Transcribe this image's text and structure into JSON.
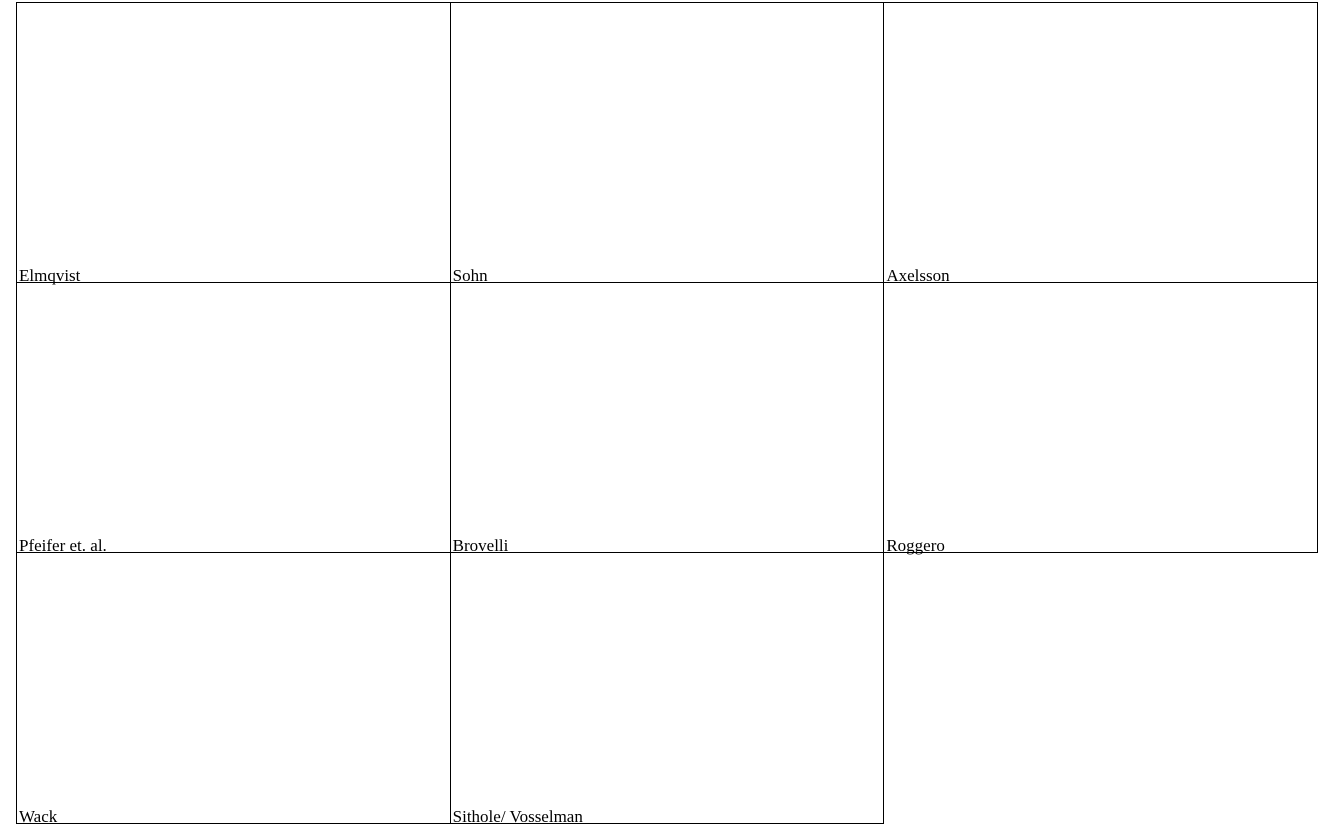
{
  "panels": [
    {
      "label": "Elmqvist",
      "variant": "light",
      "blue_density": "low"
    },
    {
      "label": "Sohn",
      "variant": "light",
      "blue_density": "low"
    },
    {
      "label": "Axelsson",
      "variant": "light",
      "blue_density": "low"
    },
    {
      "label": "Pfeifer et. al.",
      "variant": "light",
      "blue_density": "low"
    },
    {
      "label": "Brovelli",
      "variant": "heavy",
      "blue_density": "high"
    },
    {
      "label": "Roggero",
      "variant": "heavy",
      "blue_density": "high"
    },
    {
      "label": "Wack",
      "variant": "light",
      "blue_density": "medium"
    },
    {
      "label": "Sithole/ Vosselman",
      "variant": "heavy",
      "blue_density": "high"
    }
  ],
  "colors": {
    "ground": "#c8c6d6",
    "building": "#7a7a7a",
    "type_i_error": "#0000ee",
    "type_ii_error": "#ee1c1c",
    "no_data": "#22e8f0"
  }
}
